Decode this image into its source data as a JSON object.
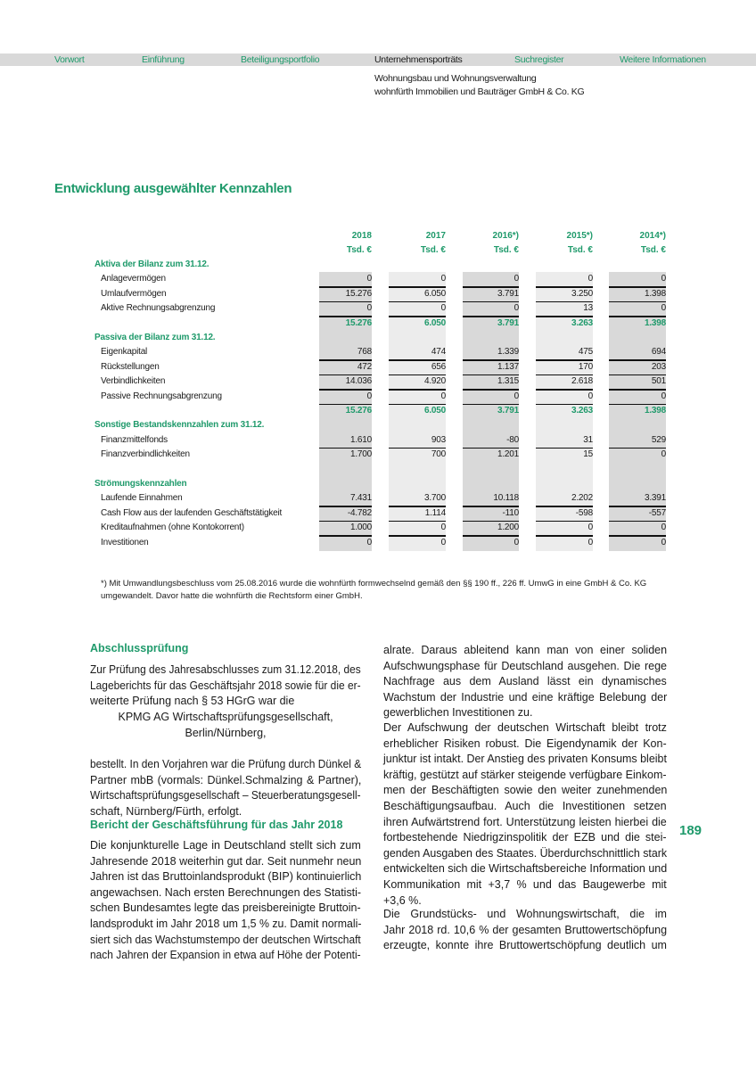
{
  "nav": {
    "items": [
      "Vorwort",
      "Einführung",
      "Beteiligungsportfolio",
      "Unternehmensporträts",
      "Suchregister",
      "Weitere Informationen"
    ],
    "active_index": 3,
    "subtitle_lines": [
      "Wohnungsbau und Wohnungsverwaltung",
      "wohnfürth Immobilien und Bauträger GmbH & Co. KG"
    ]
  },
  "colors": {
    "accent": "#1f9a6b",
    "nav_bg": "#d9d9d9",
    "col_dark": "#d9d9d9",
    "col_light": "#ececec"
  },
  "heading": "Entwicklung ausgewählter Kennzahlen",
  "table": {
    "years": [
      "2018",
      "2017",
      "2016*)",
      "2015*)",
      "2014*)"
    ],
    "unit": "Tsd. €",
    "rows": [
      {
        "type": "section",
        "label": "Aktiva der Bilanz zum 31.12."
      },
      {
        "type": "item",
        "label": "Anlagevermögen",
        "values": [
          "0",
          "0",
          "0",
          "0",
          "0"
        ],
        "sep": true
      },
      {
        "type": "item",
        "label": "Umlaufvermögen",
        "values": [
          "15.276",
          "6.050",
          "3.791",
          "3.250",
          "1.398"
        ],
        "sep": true
      },
      {
        "type": "item",
        "label": "Aktive Rechnungsabgrenzung",
        "values": [
          "0",
          "0",
          "0",
          "13",
          "0"
        ],
        "sep": true
      },
      {
        "type": "total",
        "label": "",
        "values": [
          "15.276",
          "6.050",
          "3.791",
          "3.263",
          "1.398"
        ]
      },
      {
        "type": "section",
        "label": "Passiva der Bilanz zum 31.12."
      },
      {
        "type": "item",
        "label": "Eigenkapital",
        "values": [
          "768",
          "474",
          "1.339",
          "475",
          "694"
        ],
        "sep": true
      },
      {
        "type": "item",
        "label": "Rückstellungen",
        "values": [
          "472",
          "656",
          "1.137",
          "170",
          "203"
        ],
        "sep": true
      },
      {
        "type": "item",
        "label": "Verbindlichkeiten",
        "values": [
          "14.036",
          "4.920",
          "1.315",
          "2.618",
          "501"
        ],
        "sep": true
      },
      {
        "type": "item",
        "label": "Passive Rechnungsabgrenzung",
        "values": [
          "0",
          "0",
          "0",
          "0",
          "0"
        ],
        "sep": true
      },
      {
        "type": "total",
        "label": "",
        "values": [
          "15.276",
          "6.050",
          "3.791",
          "3.263",
          "1.398"
        ]
      },
      {
        "type": "section",
        "label": "Sonstige Bestandskennzahlen zum 31.12."
      },
      {
        "type": "item",
        "label": "Finanzmittelfonds",
        "values": [
          "1.610",
          "903",
          "-80",
          "31",
          "529"
        ],
        "sep": true
      },
      {
        "type": "item",
        "label": "Finanzverbindlichkeiten",
        "values": [
          "1.700",
          "700",
          "1.201",
          "15",
          "0"
        ]
      },
      {
        "type": "blank",
        "label": ""
      },
      {
        "type": "section",
        "label": "Strömungskennzahlen"
      },
      {
        "type": "item",
        "label": "Laufende Einnahmen",
        "values": [
          "7.431",
          "3.700",
          "10.118",
          "2.202",
          "3.391"
        ],
        "sep": true
      },
      {
        "type": "item",
        "label": "Cash Flow aus der laufenden Geschäftstätigkeit",
        "values": [
          "-4.782",
          "1.114",
          "-110",
          "-598",
          "-557"
        ],
        "sep": true
      },
      {
        "type": "item",
        "label": "Kreditaufnahmen (ohne Kontokorrent)",
        "values": [
          "1.000",
          "0",
          "1.200",
          "0",
          "0"
        ],
        "sep": true
      },
      {
        "type": "item",
        "label": "Investitionen",
        "values": [
          "0",
          "0",
          "0",
          "0",
          "0"
        ]
      }
    ]
  },
  "footnote": "*)  Mit Umwandlungsbeschluss vom 25.08.2016 wurde die wohnfürth formwechselnd gemäß den §§ 190 ff., 226 ff. UmwG in eine GmbH & Co. KG umgewandelt. Davor hatte die wohnfürth die Rechtsform einer GmbH.",
  "left_column": {
    "heading1": "Abschlussprüfung",
    "para1": [
      "Zur Prüfung des Jahresabschlusses zum 31.12.2018, des",
      "Lageberichts für das Geschäftsjahr 2018 sowie für die er-",
      "weiterte Prüfung nach § 53 HGrG war die"
    ],
    "centered": [
      "KPMG AG Wirtschaftsprüfungsgesellschaft,",
      "Berlin/Nürnberg,"
    ],
    "para2": [
      "bestellt. In den Vorjahren war die Prüfung durch Dünkel &",
      "Partner mbB (vormals: Dünkel.Schmalzing & Partner),",
      "Wirtschaftsprüfungsgesellschaft – Steuerberatungsgesell-",
      "schaft, Nürnberg/Fürth, erfolgt."
    ],
    "heading2": "Bericht der Geschäftsführung für das Jahr 2018",
    "para3": [
      "Die konjunkturelle Lage in Deutschland stellt sich zum",
      "Jahresende 2018 weiterhin gut dar. Seit nunmehr neun",
      "Jahren ist das Bruttoinlandsprodukt (BIP) kontinuierlich",
      "angewachsen. Nach ersten Berechnungen des Statisti-",
      "schen Bundesamtes legte das preisbereinigte Bruttoin-",
      "landsprodukt im Jahr 2018 um 1,5 % zu. Damit normali-",
      "siert sich das Wachstumstempo der deutschen Wirtschaft",
      "nach Jahren der Expansion in etwa auf Höhe der Potenti-"
    ]
  },
  "right_column": {
    "para1": [
      "alrate. Daraus ableitend kann man von einer soliden",
      "Aufschwungsphase für Deutschland ausgehen. Die rege",
      "Nachfrage aus dem Ausland lässt ein dynamisches",
      "Wachstum der Industrie und eine kräftige Belebung der",
      "gewerblichen Investitionen zu."
    ],
    "para2": [
      "Der Aufschwung der deutschen Wirtschaft bleibt trotz",
      "erheblicher Risiken robust. Die Eigendynamik der Kon-",
      "junktur ist intakt. Der Anstieg des privaten Konsums bleibt",
      "kräftig, gestützt auf stärker steigende verfügbare Einkom-",
      "men der Beschäftigten sowie den weiter zunehmenden",
      "Beschäftigungsaufbau. Auch die Investitionen setzen",
      "ihren Aufwärtstrend fort. Unterstützung leisten hierbei die",
      "fortbestehende Niedrigzinspolitik der EZB und die stei-",
      "genden Ausgaben des Staates. Überdurchschnittlich stark",
      "entwickelten sich die Wirtschaftsbereiche Information und",
      "Kommunikation mit +3,7 % und das Baugewerbe mit",
      "+3,6 %."
    ],
    "para3": [
      "Die Grundstücks- und Wohnungswirtschaft, die im",
      "Jahr 2018 rd. 10,6 % der gesamten Bruttowertschöpfung",
      "erzeugte, konnte ihre Bruttowertschöpfung deutlich um"
    ]
  },
  "page_number": "189"
}
